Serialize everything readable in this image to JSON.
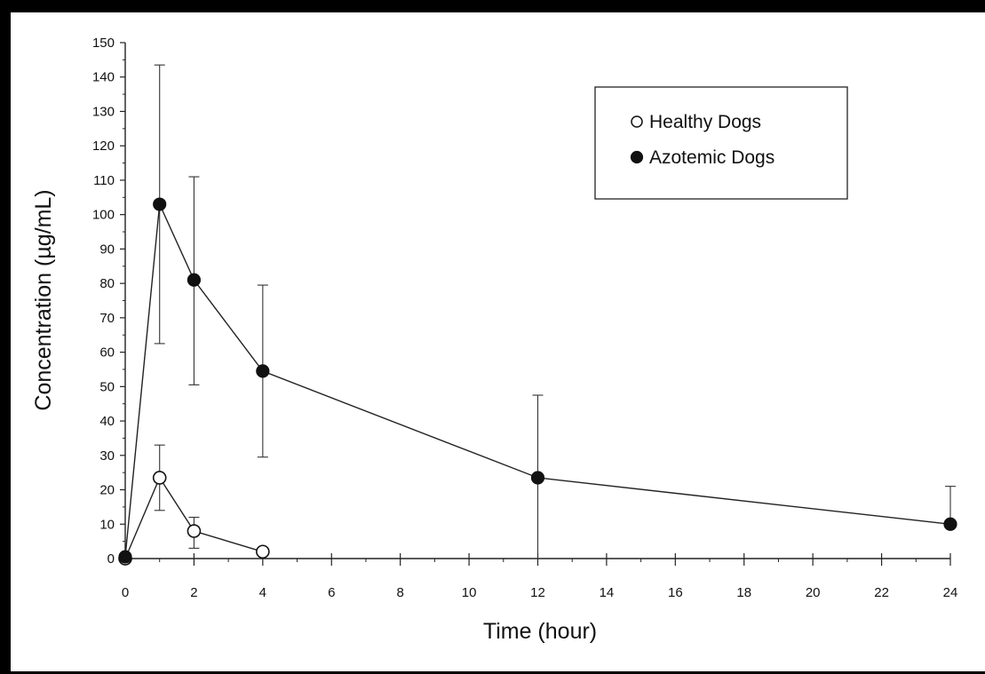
{
  "chart_data": {
    "type": "line",
    "xlabel": "Time (hour)",
    "ylabel": "Concentration (µg/mL)",
    "xlim": [
      0,
      24
    ],
    "ylim": [
      0,
      150
    ],
    "xticks": [
      0,
      2,
      4,
      6,
      8,
      10,
      12,
      14,
      16,
      18,
      20,
      22,
      24
    ],
    "yticks": [
      0,
      10,
      20,
      30,
      40,
      50,
      60,
      70,
      80,
      90,
      100,
      110,
      120,
      130,
      140,
      150
    ],
    "grid": false,
    "legend_position": "top-right",
    "series": [
      {
        "name": "Healthy Dogs",
        "marker": "open-circle",
        "color": "#111111",
        "x": [
          0,
          1,
          2,
          4
        ],
        "y": [
          0,
          23.5,
          8,
          2
        ],
        "error_upper": [
          null,
          33,
          12,
          null
        ],
        "error_lower": [
          null,
          14,
          3,
          null
        ]
      },
      {
        "name": "Azotemic Dogs",
        "marker": "filled-circle",
        "color": "#111111",
        "x": [
          0,
          1,
          2,
          4,
          12,
          24
        ],
        "y": [
          0.5,
          103,
          81,
          54.5,
          23.5,
          10
        ],
        "error_upper": [
          null,
          143.5,
          111,
          79.5,
          47.5,
          21
        ],
        "error_lower": [
          null,
          62.5,
          50.5,
          29.5,
          0,
          null
        ]
      }
    ]
  }
}
